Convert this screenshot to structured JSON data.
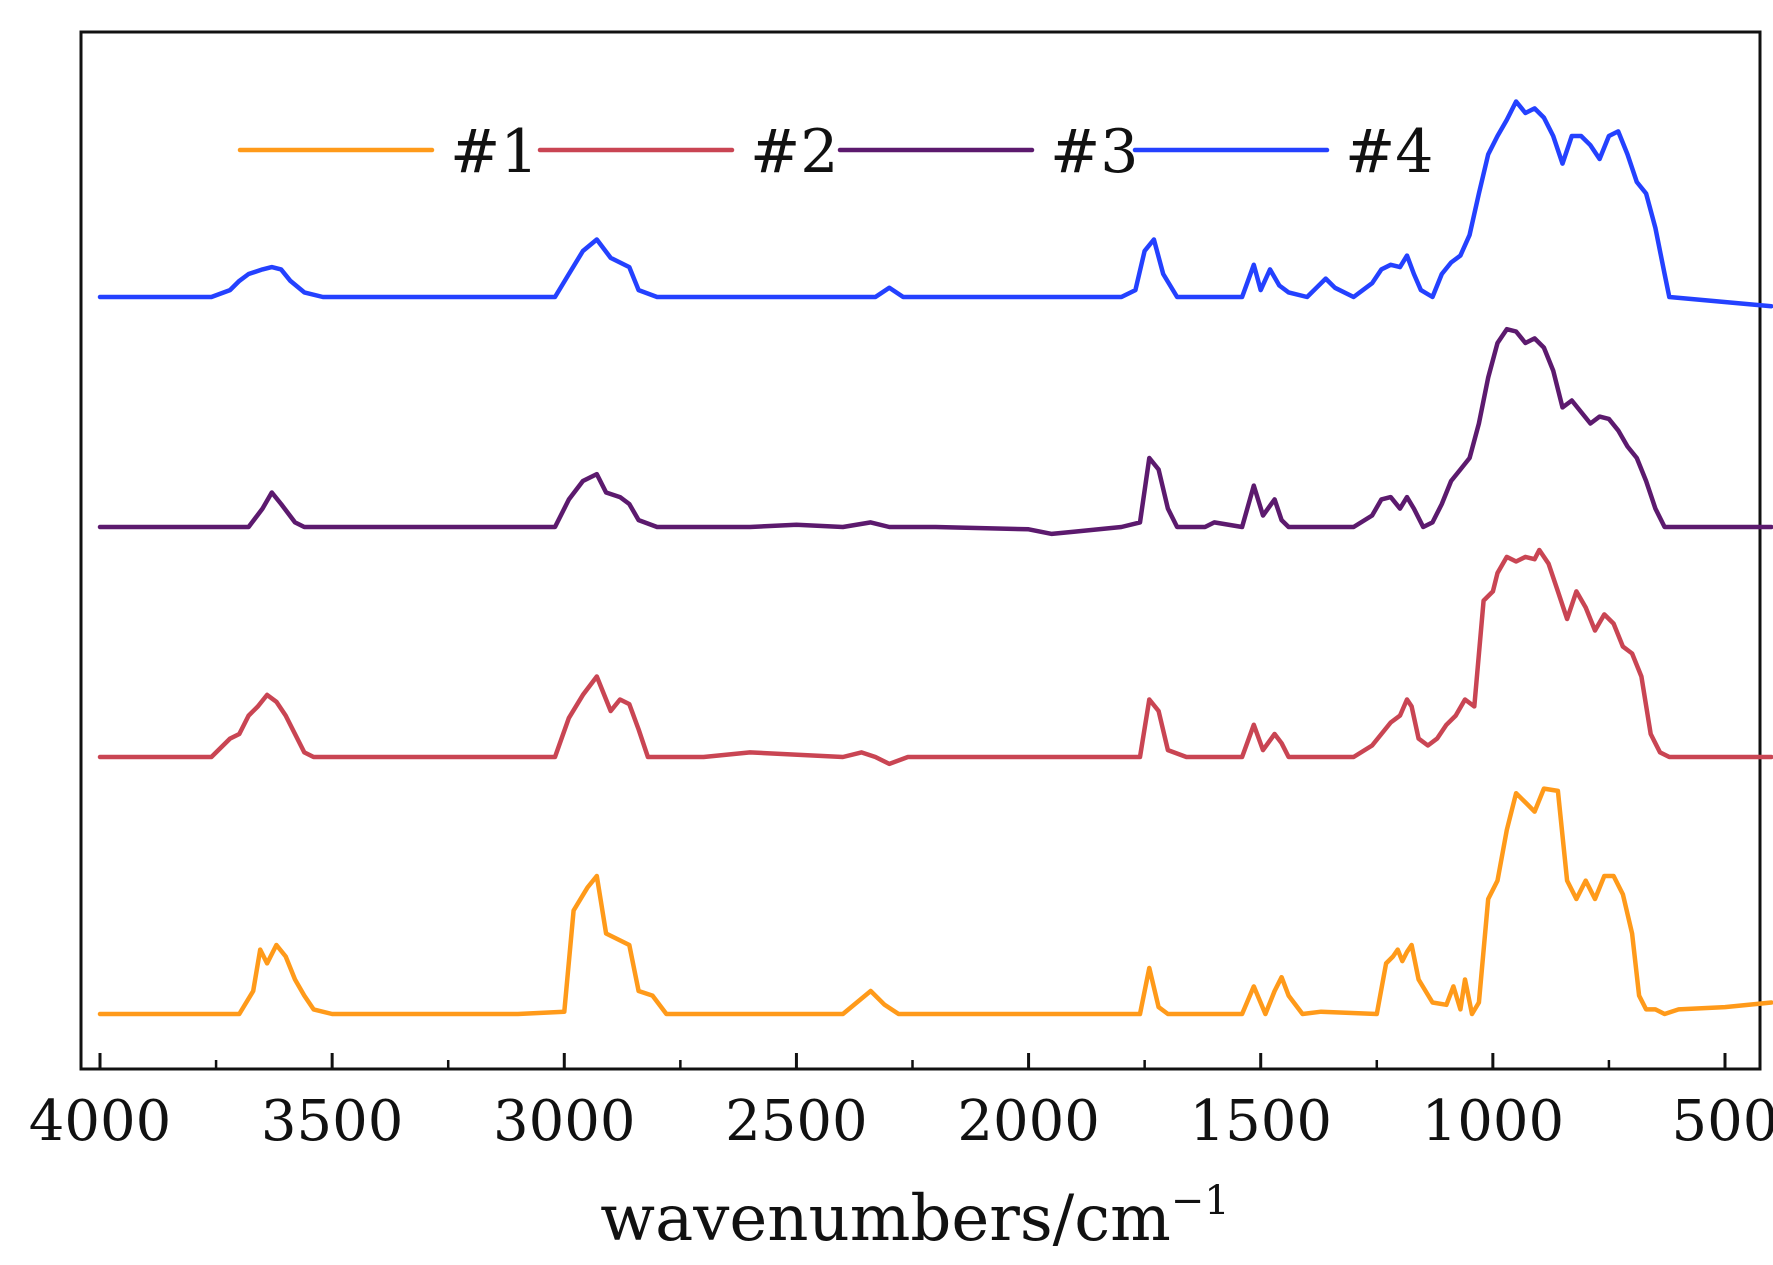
{
  "chart_data": {
    "type": "line",
    "title": "",
    "xlabel": "wavenumbers/cm",
    "xlabel_superscript": "−1",
    "ylabel": "",
    "xlim": [
      4000,
      400
    ],
    "x_reversed": true,
    "xticks": [
      4000,
      3500,
      3000,
      2500,
      2000,
      1500,
      1000,
      500
    ],
    "xtick_labels": [
      "4000",
      "3500",
      "3000",
      "2500",
      "2000",
      "1500",
      "1000",
      "500"
    ],
    "yticks": [],
    "ylim": [
      0,
      4.6
    ],
    "grid": false,
    "legend_position": "top-center",
    "legend": [
      "#1",
      "#2",
      "#3",
      "#4"
    ],
    "series": [
      {
        "name": "#1",
        "color": "#FF9A1A",
        "x": [
          4000,
          3700,
          3670,
          3655,
          3640,
          3620,
          3600,
          3580,
          3560,
          3540,
          3500,
          3100,
          3000,
          2980,
          2950,
          2930,
          2910,
          2880,
          2860,
          2840,
          2810,
          2780,
          2400,
          2370,
          2340,
          2310,
          2280,
          1760,
          1740,
          1720,
          1700,
          1540,
          1515,
          1490,
          1470,
          1455,
          1440,
          1410,
          1370,
          1250,
          1230,
          1215,
          1205,
          1195,
          1185,
          1175,
          1160,
          1130,
          1100,
          1085,
          1070,
          1060,
          1045,
          1030,
          1010,
          990,
          970,
          950,
          930,
          910,
          890,
          860,
          840,
          820,
          800,
          780,
          760,
          740,
          720,
          700,
          685,
          670,
          650,
          630,
          600,
          500,
          400
        ],
        "values": [
          0.0,
          0.0,
          0.1,
          0.28,
          0.22,
          0.3,
          0.25,
          0.15,
          0.08,
          0.02,
          0.0,
          0.0,
          0.01,
          0.45,
          0.55,
          0.6,
          0.35,
          0.32,
          0.3,
          0.1,
          0.08,
          0.0,
          0.0,
          0.05,
          0.1,
          0.04,
          0.0,
          0.0,
          0.2,
          0.03,
          0.0,
          0.0,
          0.12,
          0.0,
          0.1,
          0.16,
          0.08,
          0.0,
          0.01,
          0.0,
          0.22,
          0.25,
          0.28,
          0.23,
          0.27,
          0.3,
          0.15,
          0.05,
          0.04,
          0.12,
          0.02,
          0.15,
          0.0,
          0.05,
          0.5,
          0.58,
          0.8,
          0.96,
          0.92,
          0.88,
          0.98,
          0.97,
          0.58,
          0.5,
          0.58,
          0.5,
          0.6,
          0.6,
          0.52,
          0.35,
          0.08,
          0.02,
          0.02,
          0.0,
          0.02,
          0.03,
          0.05
        ]
      },
      {
        "name": "#2",
        "color": "#C94553",
        "x": [
          4000,
          3760,
          3720,
          3700,
          3680,
          3660,
          3640,
          3620,
          3600,
          3580,
          3560,
          3540,
          3500,
          3020,
          2990,
          2960,
          2930,
          2900,
          2880,
          2860,
          2840,
          2820,
          2800,
          2700,
          2600,
          2400,
          2360,
          2330,
          2300,
          2260,
          2200,
          1800,
          1760,
          1740,
          1720,
          1700,
          1660,
          1540,
          1515,
          1495,
          1470,
          1455,
          1440,
          1410,
          1300,
          1260,
          1240,
          1220,
          1200,
          1185,
          1175,
          1160,
          1140,
          1120,
          1100,
          1080,
          1060,
          1040,
          1020,
          1000,
          990,
          970,
          950,
          930,
          910,
          900,
          880,
          860,
          840,
          820,
          800,
          780,
          760,
          740,
          720,
          700,
          680,
          660,
          640,
          620,
          600,
          500,
          400
        ],
        "values": [
          0.0,
          0.0,
          0.08,
          0.1,
          0.18,
          0.22,
          0.27,
          0.24,
          0.18,
          0.1,
          0.02,
          0.0,
          0.0,
          0.0,
          0.17,
          0.27,
          0.35,
          0.2,
          0.25,
          0.23,
          0.12,
          0.0,
          0.0,
          0.0,
          0.02,
          0.0,
          0.02,
          0.0,
          -0.03,
          0.0,
          0.0,
          0.0,
          0.0,
          0.25,
          0.2,
          0.03,
          0.0,
          0.0,
          0.14,
          0.03,
          0.1,
          0.06,
          0.0,
          0.0,
          0.0,
          0.05,
          0.1,
          0.15,
          0.18,
          0.25,
          0.22,
          0.08,
          0.05,
          0.08,
          0.14,
          0.18,
          0.25,
          0.22,
          0.68,
          0.72,
          0.8,
          0.87,
          0.85,
          0.87,
          0.86,
          0.9,
          0.84,
          0.72,
          0.6,
          0.72,
          0.65,
          0.55,
          0.62,
          0.58,
          0.48,
          0.45,
          0.35,
          0.1,
          0.02,
          0.0,
          0.0,
          0.0,
          0.0
        ]
      },
      {
        "name": "#3",
        "color": "#5C1A6E",
        "x": [
          4000,
          3680,
          3650,
          3630,
          3610,
          3580,
          3560,
          3520,
          3020,
          2990,
          2960,
          2930,
          2910,
          2880,
          2860,
          2840,
          2800,
          2600,
          2500,
          2400,
          2340,
          2300,
          2200,
          2000,
          1950,
          1900,
          1800,
          1760,
          1740,
          1720,
          1700,
          1680,
          1620,
          1600,
          1540,
          1515,
          1495,
          1470,
          1455,
          1440,
          1300,
          1260,
          1240,
          1220,
          1200,
          1185,
          1170,
          1150,
          1130,
          1110,
          1090,
          1070,
          1050,
          1030,
          1010,
          990,
          970,
          950,
          930,
          910,
          890,
          870,
          850,
          830,
          810,
          790,
          770,
          750,
          730,
          710,
          690,
          670,
          650,
          630,
          600,
          500,
          400
        ],
        "values": [
          0.0,
          0.0,
          0.08,
          0.15,
          0.1,
          0.02,
          0.0,
          0.0,
          0.0,
          0.12,
          0.2,
          0.23,
          0.15,
          0.13,
          0.1,
          0.03,
          0.0,
          0.0,
          0.01,
          0.0,
          0.02,
          0.0,
          0.0,
          -0.01,
          -0.03,
          -0.02,
          0.0,
          0.02,
          0.3,
          0.25,
          0.08,
          0.0,
          0.0,
          0.02,
          0.0,
          0.18,
          0.05,
          0.12,
          0.03,
          0.0,
          0.0,
          0.05,
          0.12,
          0.13,
          0.08,
          0.13,
          0.08,
          0.0,
          0.02,
          0.1,
          0.2,
          0.25,
          0.3,
          0.45,
          0.65,
          0.8,
          0.86,
          0.85,
          0.8,
          0.82,
          0.78,
          0.68,
          0.52,
          0.55,
          0.5,
          0.45,
          0.48,
          0.47,
          0.42,
          0.35,
          0.3,
          0.2,
          0.08,
          0.0,
          0.0,
          0.0,
          0.0
        ]
      },
      {
        "name": "#4",
        "color": "#2441FF",
        "x": [
          4000,
          3760,
          3720,
          3700,
          3680,
          3650,
          3630,
          3610,
          3590,
          3560,
          3520,
          3020,
          2990,
          2960,
          2930,
          2900,
          2880,
          2860,
          2840,
          2800,
          2400,
          2330,
          2300,
          2270,
          2200,
          1800,
          1770,
          1750,
          1730,
          1710,
          1680,
          1620,
          1540,
          1515,
          1500,
          1480,
          1460,
          1440,
          1400,
          1380,
          1360,
          1340,
          1300,
          1260,
          1240,
          1220,
          1200,
          1185,
          1170,
          1155,
          1130,
          1110,
          1090,
          1070,
          1050,
          1030,
          1010,
          990,
          970,
          950,
          930,
          910,
          890,
          870,
          850,
          830,
          810,
          790,
          770,
          750,
          730,
          710,
          690,
          670,
          650,
          630,
          620,
          400
        ],
        "values": [
          0.0,
          0.0,
          0.03,
          0.07,
          0.1,
          0.12,
          0.13,
          0.12,
          0.07,
          0.02,
          0.0,
          0.0,
          0.1,
          0.2,
          0.25,
          0.17,
          0.15,
          0.13,
          0.03,
          0.0,
          0.0,
          0.0,
          0.04,
          0.0,
          0.0,
          0.0,
          0.03,
          0.2,
          0.25,
          0.1,
          0.0,
          0.0,
          0.0,
          0.14,
          0.03,
          0.12,
          0.05,
          0.02,
          0.0,
          0.04,
          0.08,
          0.04,
          0.0,
          0.06,
          0.12,
          0.14,
          0.13,
          0.18,
          0.1,
          0.03,
          0.0,
          0.1,
          0.15,
          0.18,
          0.27,
          0.45,
          0.62,
          0.7,
          0.77,
          0.85,
          0.8,
          0.82,
          0.78,
          0.7,
          0.58,
          0.7,
          0.7,
          0.66,
          0.6,
          0.7,
          0.72,
          0.62,
          0.5,
          0.45,
          0.3,
          0.1,
          0.0,
          -0.04
        ]
      }
    ],
    "offsets": [
      0.0,
      1.1,
      2.1,
      3.1
    ]
  }
}
